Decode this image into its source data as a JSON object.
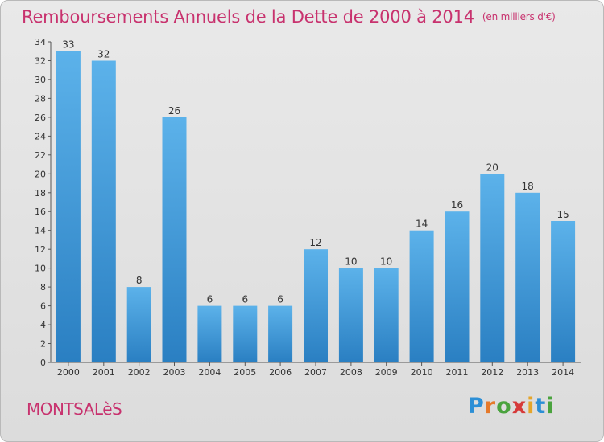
{
  "title": "Remboursements Annuels de la Dette de 2000 à 2014",
  "unit": "(en milliers d'€)",
  "commune": "MONTSALèS",
  "logo": {
    "letters": [
      "P",
      "r",
      "o",
      "x",
      "i",
      "t",
      "i"
    ],
    "colors": [
      "#2c8fd6",
      "#e5792a",
      "#4aa33e",
      "#d63a3a",
      "#e5a52a",
      "#2c8fd6",
      "#4aa33e"
    ]
  },
  "colors": {
    "title": "#c8326e",
    "bar_top": "#5cb2ea",
    "bar_bottom": "#2a7fc2"
  },
  "chart_data": {
    "type": "bar",
    "title": "Remboursements Annuels de la Dette de 2000 à 2014",
    "categories": [
      "2000",
      "2001",
      "2002",
      "2003",
      "2004",
      "2005",
      "2006",
      "2007",
      "2008",
      "2009",
      "2010",
      "2011",
      "2012",
      "2013",
      "2014"
    ],
    "values": [
      33,
      32,
      8,
      26,
      6,
      6,
      6,
      12,
      10,
      10,
      14,
      16,
      20,
      18,
      15
    ],
    "ylim": [
      0,
      34
    ],
    "yticks": [
      0,
      2,
      4,
      6,
      8,
      10,
      12,
      14,
      16,
      18,
      20,
      22,
      24,
      26,
      28,
      30,
      32,
      34
    ],
    "grid": false,
    "data_labels": true
  }
}
